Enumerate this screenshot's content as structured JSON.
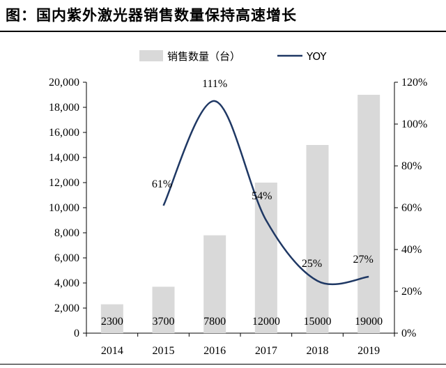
{
  "header": {
    "title": "图：国内紫外激光器销售数量保持高速增长"
  },
  "chart_data": {
    "type": "bar",
    "categories": [
      "2014",
      "2015",
      "2016",
      "2017",
      "2018",
      "2019"
    ],
    "series": [
      {
        "name": "销售数量（台）",
        "type": "bar",
        "axis": "left",
        "color": "#d9d9d9",
        "values": [
          2300,
          3700,
          7800,
          12000,
          15000,
          19000
        ],
        "labels": [
          "2300",
          "3700",
          "7800",
          "12000",
          "15000",
          "19000"
        ]
      },
      {
        "name": "YOY",
        "type": "line",
        "axis": "right",
        "color": "#1f3864",
        "values": [
          null,
          61,
          111,
          54,
          25,
          27
        ],
        "labels": [
          "",
          "61%",
          "111%",
          "54%",
          "25%",
          "27%"
        ]
      }
    ],
    "y_left": {
      "lim": [
        0,
        20000
      ],
      "ticks": [
        "0",
        "2,000",
        "4,000",
        "6,000",
        "8,000",
        "10,000",
        "12,000",
        "14,000",
        "16,000",
        "18,000",
        "20,000"
      ]
    },
    "y_right": {
      "lim": [
        0,
        120
      ],
      "ticks": [
        "0%",
        "20%",
        "40%",
        "60%",
        "80%",
        "100%",
        "120%"
      ]
    },
    "legend_position": "top",
    "grid": false
  }
}
